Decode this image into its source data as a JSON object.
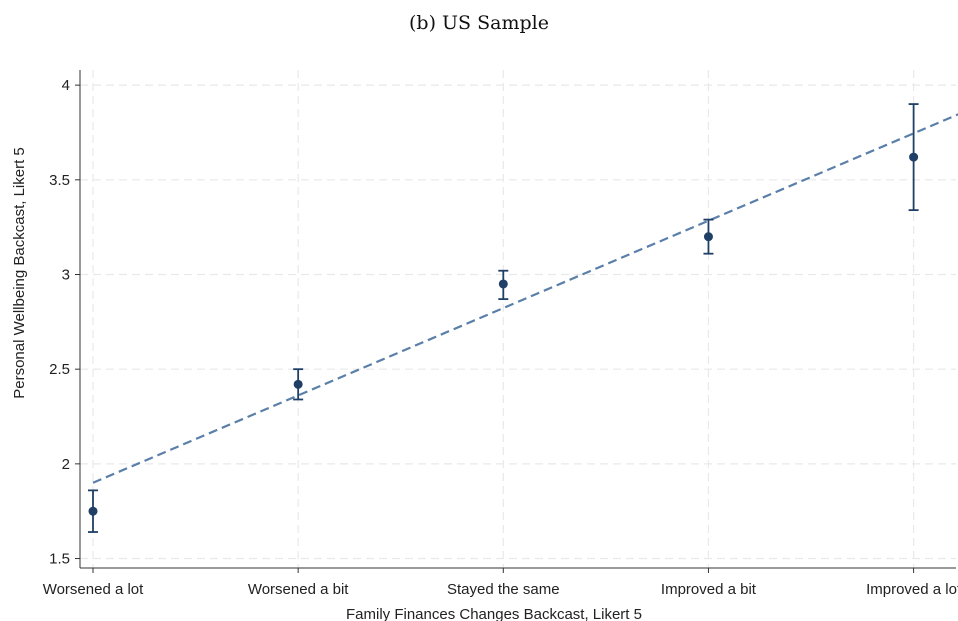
{
  "caption": "(b) US Sample",
  "chart_data": {
    "type": "scatter",
    "xlabel": "Family Finances Changes Backcast, Likert 5",
    "ylabel": "Personal Wellbeing Backcast, Likert 5",
    "categories": [
      "Worsened a lot",
      "Worsened a bit",
      "Stayed the same",
      "Improved a bit",
      "Improved a lot"
    ],
    "x": [
      1,
      2,
      3,
      4,
      5
    ],
    "xlim": [
      1,
      5.27
    ],
    "ylim": [
      1.45,
      4.08
    ],
    "yticks": [
      1.5,
      2,
      2.5,
      3,
      3.5,
      4
    ],
    "ytick_labels": [
      "1.5",
      "2",
      "2.5",
      "3",
      "3.5",
      "4"
    ],
    "grid": true,
    "series": [
      {
        "kind": "point-with-ci",
        "values": [
          1.75,
          2.42,
          2.95,
          3.2,
          3.62
        ],
        "ci_low": [
          1.64,
          2.34,
          2.87,
          3.11,
          3.34
        ],
        "ci_high": [
          1.86,
          2.5,
          3.02,
          3.29,
          3.9
        ],
        "color": "#1f3f66"
      },
      {
        "kind": "fitted-line",
        "style": "dashed",
        "x": [
          1,
          5.27
        ],
        "values": [
          1.9,
          3.87
        ],
        "color": "#5a7fa8"
      }
    ]
  }
}
